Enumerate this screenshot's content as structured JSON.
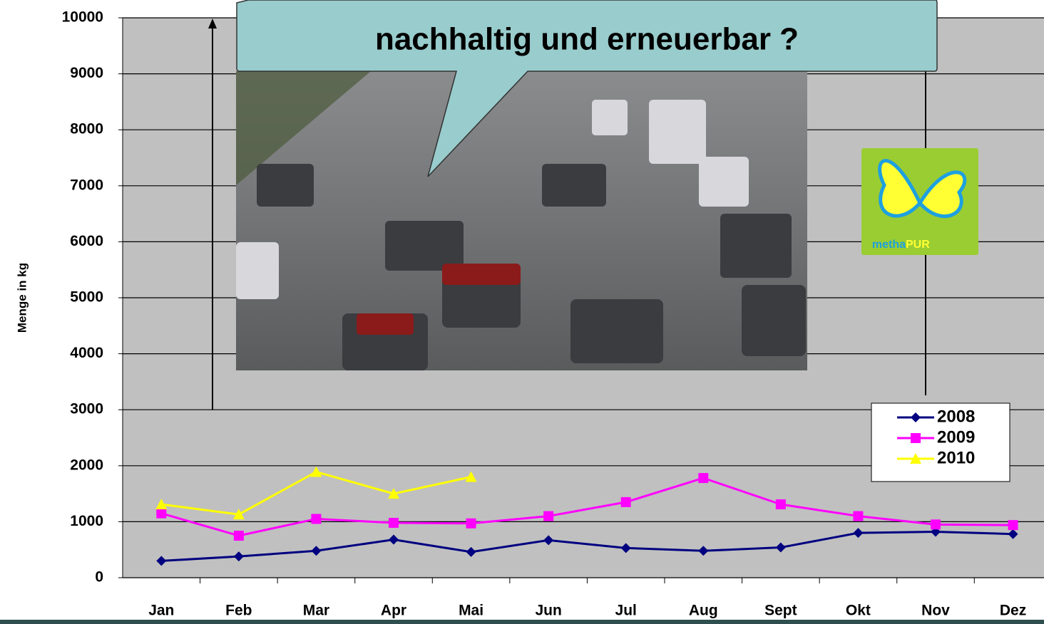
{
  "chart_data": {
    "type": "line",
    "ylabel": "Menge in kg",
    "annotation": "nachhaltig und erneuerbar ?",
    "logo_text": [
      "metha",
      "PUR"
    ],
    "categories": [
      "Jan",
      "Feb",
      "Mar",
      "Apr",
      "Mai",
      "Jun",
      "Jul",
      "Aug",
      "Sept",
      "Okt",
      "Nov",
      "Dez"
    ],
    "series": [
      {
        "name": "2008",
        "color": "#000080",
        "marker": "diamond",
        "values": [
          300,
          380,
          480,
          680,
          460,
          670,
          530,
          480,
          540,
          800,
          820,
          780
        ]
      },
      {
        "name": "2009",
        "color": "#ff00ff",
        "marker": "square",
        "values": [
          1150,
          750,
          1050,
          980,
          970,
          1100,
          1350,
          1780,
          1310,
          1100,
          950,
          940
        ]
      },
      {
        "name": "2010",
        "color": "#ffff00",
        "marker": "triangle",
        "values": [
          1310,
          1130,
          1890,
          1500,
          1800,
          null,
          null,
          null,
          null,
          null,
          null,
          null
        ]
      }
    ],
    "ylim": [
      0,
      10000
    ],
    "yticks": [
      0,
      1000,
      2000,
      3000,
      4000,
      5000,
      6000,
      7000,
      8000,
      9000,
      10000
    ],
    "grid": true
  }
}
